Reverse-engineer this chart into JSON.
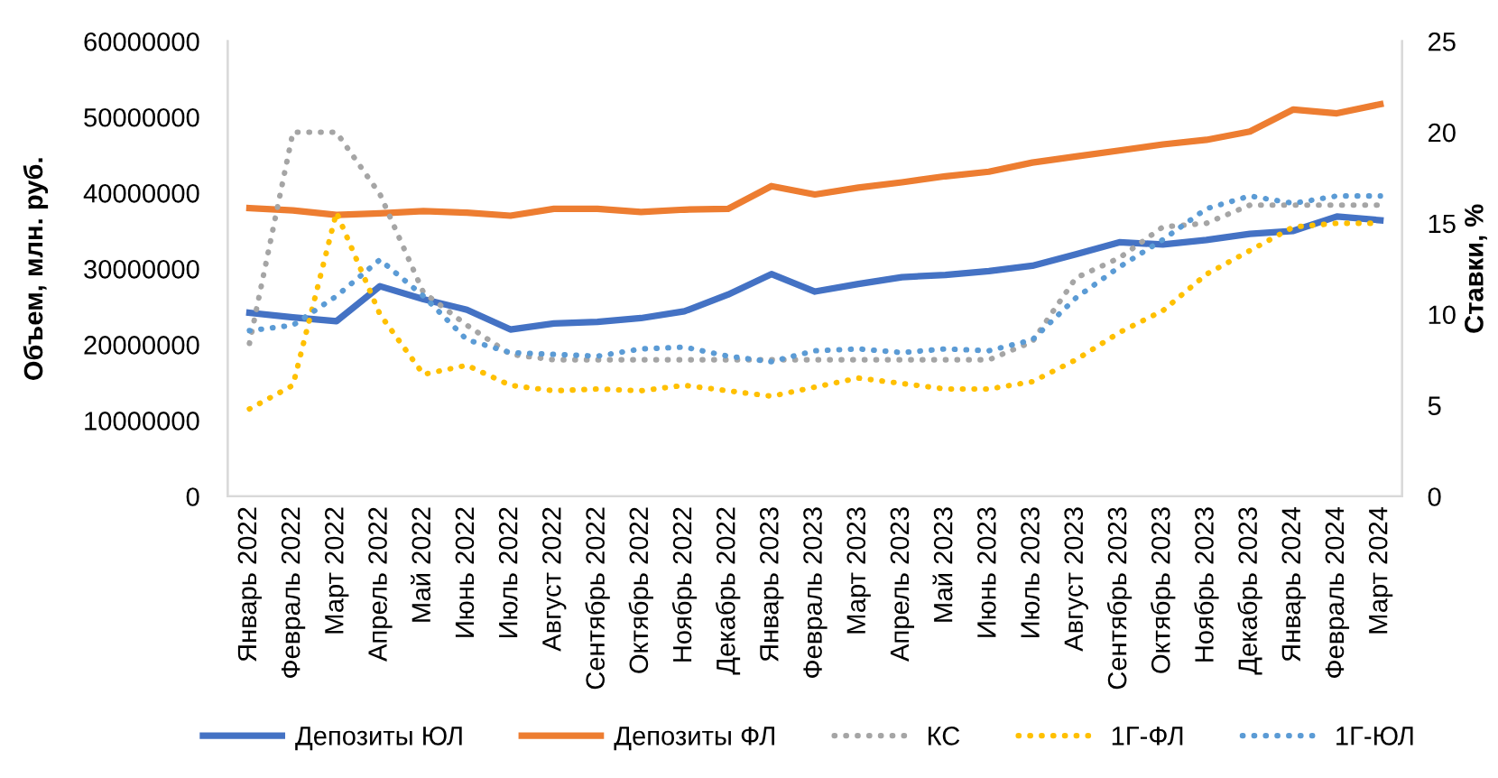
{
  "chart_data": {
    "type": "line",
    "categories": [
      "Январь 2022",
      "Февраль 2022",
      "Март 2022",
      "Апрель 2022",
      "Май 2022",
      "Июнь 2022",
      "Июль 2022",
      "Август 2022",
      "Сентябрь 2022",
      "Октябрь 2022",
      "Ноябрь 2022",
      "Декабрь 2022",
      "Январь 2023",
      "Февраль 2023",
      "Март 2023",
      "Апрель 2023",
      "Май 2023",
      "Июнь 2023",
      "Июль 2023",
      "Август 2023",
      "Сентябрь 2023",
      "Октябрь 2023",
      "Ноябрь 2023",
      "Декабрь 2023",
      "Январь 2024",
      "Февраль 2024",
      "Март 2024"
    ],
    "series": [
      {
        "name": "Депозиты ЮЛ",
        "color": "#4472c4",
        "line_style": "solid",
        "axis": "y",
        "values": [
          24200000,
          23600000,
          23100000,
          27700000,
          26000000,
          24600000,
          22000000,
          22800000,
          23000000,
          23500000,
          24400000,
          26600000,
          29300000,
          27000000,
          28000000,
          28900000,
          29200000,
          29700000,
          30400000,
          31900000,
          33500000,
          33200000,
          33800000,
          34600000,
          35000000,
          36900000,
          36400000
        ]
      },
      {
        "name": "Депозиты ФЛ",
        "color": "#ed7d31",
        "line_style": "solid",
        "axis": "y",
        "values": [
          38000000,
          37700000,
          37100000,
          37300000,
          37600000,
          37400000,
          37000000,
          37900000,
          37900000,
          37500000,
          37800000,
          37900000,
          40900000,
          39800000,
          40700000,
          41400000,
          42200000,
          42800000,
          44000000,
          44800000,
          45600000,
          46400000,
          47000000,
          48100000,
          51000000,
          50500000,
          51700000
        ]
      },
      {
        "name": "КС",
        "color": "#a5a5a5",
        "line_style": "dotted",
        "axis": "y2",
        "values": [
          8.4,
          20.0,
          20.0,
          16.6,
          11.2,
          9.4,
          7.8,
          7.5,
          7.5,
          7.5,
          7.5,
          7.5,
          7.5,
          7.5,
          7.5,
          7.5,
          7.5,
          7.5,
          8.5,
          12.0,
          13.1,
          14.8,
          15.0,
          16.0,
          16.0,
          16.0,
          16.0
        ]
      },
      {
        "name": "1Г-ФЛ",
        "color": "#ffc000",
        "line_style": "dotted",
        "axis": "y2",
        "values": [
          4.8,
          6.1,
          15.6,
          10.0,
          6.7,
          7.2,
          6.1,
          5.8,
          5.9,
          5.8,
          6.1,
          5.8,
          5.5,
          6.0,
          6.5,
          6.2,
          5.9,
          5.9,
          6.3,
          7.5,
          9.0,
          10.2,
          12.2,
          13.5,
          14.8,
          15.0,
          15.0
        ]
      },
      {
        "name": "1Г-ЮЛ",
        "color": "#5b9bd5",
        "line_style": "dotted",
        "axis": "y2",
        "values": [
          9.1,
          9.4,
          11.0,
          13.0,
          11.0,
          8.6,
          7.9,
          7.8,
          7.7,
          8.1,
          8.2,
          7.7,
          7.4,
          8.0,
          8.1,
          7.9,
          8.1,
          8.0,
          8.6,
          10.9,
          12.6,
          14.1,
          15.8,
          16.5,
          16.1,
          16.5,
          16.5
        ]
      }
    ],
    "ylabel": "Объем, млн. руб.",
    "y2label": "Ставки, %",
    "ylim": [
      0,
      60000000
    ],
    "yticks": [
      0,
      10000000,
      20000000,
      30000000,
      40000000,
      50000000,
      60000000
    ],
    "y2lim": [
      0,
      25
    ],
    "y2ticks": [
      0,
      5,
      10,
      15,
      20,
      25
    ],
    "grid": false,
    "legend": "bottom"
  }
}
